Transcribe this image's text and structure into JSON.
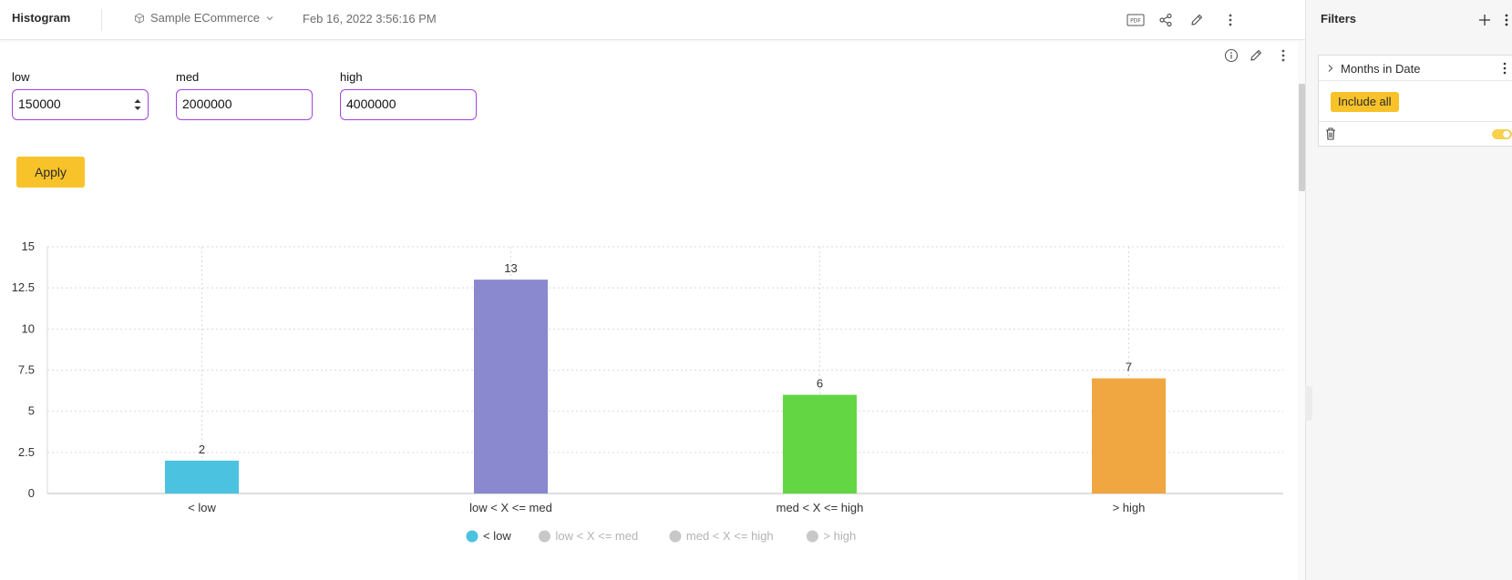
{
  "header": {
    "title": "Histogram",
    "datasource": "Sample ECommerce",
    "timestamp": "Feb 16, 2022 3:56:16 PM",
    "icons": [
      "pdf-icon",
      "share-icon",
      "edit-icon",
      "more-icon"
    ]
  },
  "widget": {
    "icons": [
      "info-icon",
      "edit-icon",
      "more-icon"
    ]
  },
  "inputs": {
    "low": {
      "label": "low",
      "value": "150000"
    },
    "med": {
      "label": "med",
      "value": "2000000"
    },
    "high": {
      "label": "high",
      "value": "4000000"
    }
  },
  "apply_label": "Apply",
  "chart_data": {
    "type": "bar",
    "categories": [
      "< low",
      "low < X <= med",
      "med < X <= high",
      "> high"
    ],
    "values": [
      2,
      13,
      6,
      7
    ],
    "colors": [
      "#4bc2e0",
      "#8a88cf",
      "#63d644",
      "#f0a742"
    ],
    "y_ticks": [
      "0",
      "2.5",
      "5",
      "7.5",
      "10",
      "12.5",
      "15"
    ],
    "ylim": [
      0,
      15
    ],
    "grid": true,
    "legend": {
      "placement": "bottom-center",
      "items": [
        {
          "label": "< low",
          "active": true,
          "color": "#4bc2e0"
        },
        {
          "label": "low < X <= med",
          "active": false,
          "color": "#c8c8c8"
        },
        {
          "label": "med < X <= high",
          "active": false,
          "color": "#c8c8c8"
        },
        {
          "label": "> high",
          "active": false,
          "color": "#c8c8c8"
        }
      ]
    }
  },
  "filters": {
    "title": "Filters",
    "items": [
      {
        "name": "Months in Date",
        "action": "Include all"
      }
    ]
  }
}
